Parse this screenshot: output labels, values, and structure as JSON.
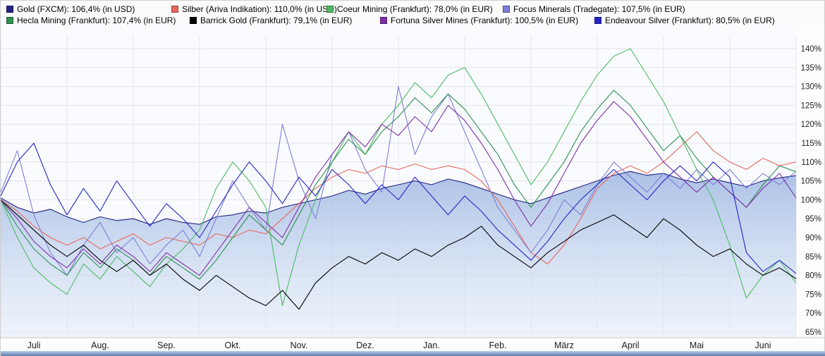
{
  "legend": {
    "items": [
      {
        "label": "Gold (FXCM): 106,4% (in USD)",
        "color": "#23237f"
      },
      {
        "label": "Silber (Ariva Indikation): 110,0% (in USD)",
        "color": "#e8695c"
      },
      {
        "label": "Coeur Mining (Frankfurt): 78,0% (in EUR)",
        "color": "#4dbb63"
      },
      {
        "label": "Focus Minerals (Tradegate): 107,5% (in EUR)",
        "color": "#7d7fd8"
      },
      {
        "label": "Hecla Mining (Frankfurt): 107,4% (in EUR)",
        "color": "#2e9152"
      },
      {
        "label": "Barrick Gold (Frankfurt): 79,1% (in EUR)",
        "color": "#000000"
      },
      {
        "label": "Fortuna Silver Mines (Frankfurt): 100,5% (in EUR)",
        "color": "#7d2fa8"
      },
      {
        "label": "Endeavour Silver (Frankfurt): 80,5% (in EUR)",
        "color": "#2424c8"
      }
    ]
  },
  "chart_data": {
    "type": "line",
    "title": "",
    "x_axis": {
      "labels": [
        "Juli",
        "Aug.",
        "Sep.",
        "Okt.",
        "Nov.",
        "Dez.",
        "Jan.",
        "Feb.",
        "März",
        "April",
        "Mai",
        "Juni"
      ]
    },
    "y_axis": {
      "min": 65,
      "max": 140,
      "step": 5,
      "unit": "%",
      "ticks": [
        "140%",
        "135%",
        "130%",
        "125%",
        "120%",
        "115%",
        "110%",
        "105%",
        "100%",
        "95%",
        "90%",
        "85%",
        "80%",
        "75%",
        "70%",
        "65%"
      ]
    },
    "grid": true,
    "legend_position": "top",
    "series": [
      {
        "name": "Gold (FXCM)",
        "last": "106,4%",
        "currency": "USD",
        "color": "#23237f",
        "area": true,
        "values": [
          100.5,
          98,
          96.5,
          97.5,
          95.5,
          94,
          95.5,
          94.5,
          95,
          93.5,
          95,
          94,
          93.5,
          95.5,
          96,
          97,
          96.5,
          98,
          99,
          100,
          101,
          102.5,
          101.5,
          103,
          104,
          105,
          104,
          105.5,
          104.5,
          103,
          101.5,
          100,
          99,
          100.5,
          102,
          103.5,
          105,
          106.5,
          107.5,
          106.5,
          107,
          105.5,
          104.5,
          105.5,
          104.5,
          103.5,
          105,
          105.8,
          106.4
        ]
      },
      {
        "name": "Silber (Ariva Indikation)",
        "last": "110,0%",
        "currency": "USD",
        "color": "#e8695c",
        "area": false,
        "values": [
          100,
          97,
          93,
          90,
          88,
          90,
          87,
          89,
          91,
          88,
          90,
          89,
          88,
          91,
          90,
          92,
          91,
          95,
          99,
          103,
          106,
          108,
          107,
          109,
          108,
          109.5,
          108,
          109,
          108,
          105,
          100,
          93,
          86,
          83,
          88,
          95,
          103,
          107,
          109,
          107,
          110,
          114,
          118,
          113,
          110,
          108,
          111,
          109,
          110
        ]
      },
      {
        "name": "Coeur Mining (Frankfurt)",
        "last": "78,0%",
        "currency": "EUR",
        "color": "#4dbb63",
        "area": false,
        "values": [
          100,
          90,
          82,
          78,
          75,
          83,
          79,
          85,
          81,
          77,
          83,
          87,
          92,
          103,
          110,
          105,
          98,
          72,
          88,
          100,
          110,
          118,
          112,
          120,
          125,
          131,
          127,
          133,
          135,
          128,
          120,
          112,
          104,
          110,
          118,
          126,
          133,
          138,
          140,
          133,
          126,
          117,
          108,
          100,
          88,
          74,
          80,
          84,
          78
        ]
      },
      {
        "name": "Focus Minerals (Tradegate)",
        "last": "107,5%",
        "currency": "EUR",
        "color": "#7d7fd8",
        "area": false,
        "values": [
          102,
          113,
          96,
          86,
          80,
          88,
          94,
          86,
          90,
          83,
          88,
          92,
          85,
          95,
          105,
          98,
          92,
          120,
          105,
          95,
          112,
          118,
          108,
          102,
          130,
          112,
          122,
          128,
          118,
          108,
          98,
          92,
          86,
          92,
          100,
          96,
          104,
          110,
          106,
          102,
          107,
          103,
          108,
          104,
          108,
          103,
          107,
          104,
          107.5
        ]
      },
      {
        "name": "Hecla Mining (Frankfurt)",
        "last": "107,4%",
        "currency": "EUR",
        "color": "#2e9152",
        "area": false,
        "values": [
          100,
          93,
          87,
          83,
          80,
          86,
          82,
          87,
          84,
          80,
          85,
          82,
          79,
          84,
          90,
          96,
          92,
          88,
          96,
          104,
          110,
          116,
          112,
          118,
          122,
          127,
          123,
          128,
          124,
          118,
          112,
          104,
          98,
          104,
          110,
          118,
          124,
          129,
          125,
          119,
          113,
          117,
          111,
          106,
          102,
          98,
          104,
          109,
          107.4
        ]
      },
      {
        "name": "Barrick Gold (Frankfurt)",
        "last": "79,1%",
        "currency": "EUR",
        "color": "#000000",
        "area": false,
        "values": [
          100,
          96,
          92,
          88,
          85,
          88,
          84,
          81,
          84,
          80,
          83,
          79,
          76,
          80,
          77,
          74,
          72,
          76,
          71,
          78,
          82,
          85,
          83,
          86,
          84,
          87,
          85,
          88,
          90,
          93,
          88,
          85,
          82,
          86,
          89,
          92,
          94,
          96,
          93,
          90,
          95,
          92,
          88,
          85,
          87,
          83,
          80,
          82,
          79.1
        ]
      },
      {
        "name": "Fortuna Silver Mines (Frankfurt)",
        "last": "100,5%",
        "currency": "EUR",
        "color": "#7d2fa8",
        "area": false,
        "values": [
          100,
          95,
          89,
          85,
          82,
          87,
          83,
          88,
          85,
          81,
          86,
          83,
          80,
          86,
          92,
          98,
          94,
          90,
          98,
          106,
          112,
          118,
          114,
          120,
          117,
          122,
          118,
          125,
          121,
          115,
          108,
          100,
          93,
          99,
          107,
          115,
          121,
          126,
          122,
          116,
          110,
          106,
          102,
          106,
          102,
          98,
          103,
          107,
          100.5
        ]
      },
      {
        "name": "Endeavour Silver (Frankfurt)",
        "last": "80,5%",
        "currency": "EUR",
        "color": "#2424c8",
        "area": false,
        "values": [
          101,
          110,
          115,
          104,
          96,
          103,
          97,
          105,
          99,
          93,
          99,
          95,
          90,
          97,
          104,
          110,
          105,
          99,
          106,
          101,
          108,
          104,
          99,
          104,
          100,
          106,
          101,
          96,
          101,
          97,
          92,
          88,
          84,
          89,
          95,
          100,
          104,
          108,
          104,
          100,
          105,
          109,
          105,
          110,
          106,
          86,
          81,
          84,
          80.5
        ]
      }
    ]
  }
}
